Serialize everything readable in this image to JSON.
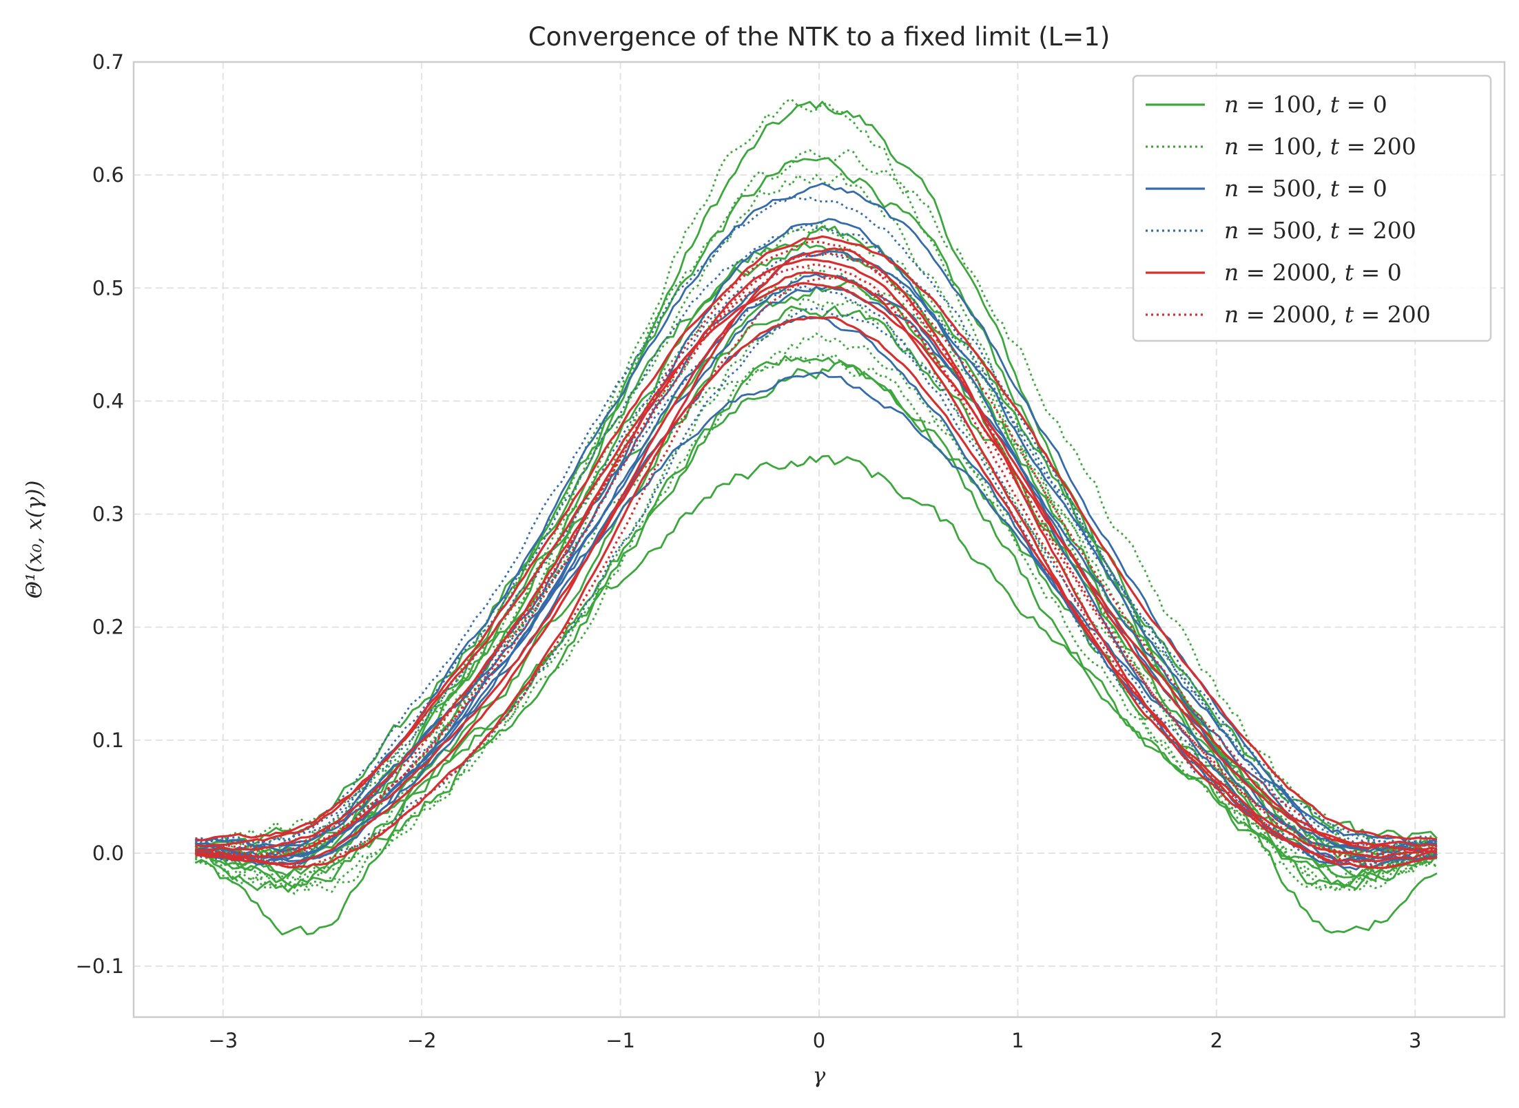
{
  "chart_data": {
    "type": "line",
    "title": "Convergence of the NTK to a fixed limit (L=1)",
    "xlabel": "γ",
    "ylabel": "Θ¹(x₀, x(γ))",
    "xlim": [
      -3.45,
      3.45
    ],
    "ylim": [
      -0.145,
      0.7
    ],
    "x_ticks": [
      -3,
      -2,
      -1,
      0,
      1,
      2,
      3
    ],
    "x_tick_labels": [
      "−3",
      "−2",
      "−1",
      "0",
      "1",
      "2",
      "3"
    ],
    "y_ticks": [
      -0.1,
      0.0,
      0.1,
      0.2,
      0.3,
      0.4,
      0.5,
      0.6,
      0.7
    ],
    "y_tick_labels": [
      "−0.1",
      "0.0",
      "0.1",
      "0.2",
      "0.3",
      "0.4",
      "0.5",
      "0.6",
      "0.7"
    ],
    "grid": true,
    "legend_position": "top-right",
    "x_range": [
      -3.14,
      3.11
    ],
    "series": [
      {
        "name": "n = 100,  t = 0",
        "color": "#3ca73c",
        "style": "solid",
        "peaks": [
          0.66,
          0.61,
          0.55,
          0.54,
          0.5,
          0.48,
          0.44,
          0.43,
          0.35
        ],
        "tail_min": [
          -0.1,
          -0.05,
          -0.03,
          -0.06,
          -0.02,
          -0.04,
          -0.03,
          -0.02,
          -0.05
        ]
      },
      {
        "name": "n = 100,  t = 200",
        "color": "#3ca73c",
        "style": "dotted",
        "peaks": [
          0.665,
          0.62,
          0.6,
          0.55,
          0.51,
          0.49,
          0.455,
          0.44
        ],
        "tail_min": [
          -0.045,
          -0.04,
          -0.05,
          -0.03,
          -0.02,
          -0.035,
          -0.04,
          -0.03
        ]
      },
      {
        "name": "n = 500,  t = 0",
        "color": "#356ba8",
        "style": "solid",
        "peaks": [
          0.59,
          0.56,
          0.53,
          0.51,
          0.5,
          0.47,
          0.42
        ],
        "tail_min": [
          -0.04,
          -0.03,
          -0.02,
          -0.035,
          -0.03,
          -0.025,
          -0.03
        ]
      },
      {
        "name": "n = 500,  t = 200",
        "color": "#356ba8",
        "style": "dotted",
        "peaks": [
          0.58,
          0.555,
          0.53,
          0.5,
          0.48
        ],
        "tail_min": [
          -0.035,
          -0.03,
          -0.025,
          -0.03,
          -0.02
        ]
      },
      {
        "name": "n = 2000,  t = 0",
        "color": "#d62f2f",
        "style": "solid",
        "peaks": [
          0.545,
          0.535,
          0.525,
          0.515,
          0.505,
          0.475
        ],
        "tail_min": [
          -0.025,
          -0.023,
          -0.02,
          -0.022,
          -0.024,
          -0.02
        ]
      },
      {
        "name": "n = 2000,  t = 200",
        "color": "#d62f2f",
        "style": "dotted",
        "peaks": [
          0.54,
          0.53,
          0.52,
          0.51
        ],
        "tail_min": [
          -0.024,
          -0.022,
          -0.021,
          -0.023
        ]
      }
    ]
  },
  "legend": [
    {
      "pre": "n",
      "mid1": " = 100,  ",
      "t": "t",
      "mid2": " = 0"
    },
    {
      "pre": "n",
      "mid1": " = 100,  ",
      "t": "t",
      "mid2": " = 200"
    },
    {
      "pre": "n",
      "mid1": " = 500,  ",
      "t": "t",
      "mid2": " = 0"
    },
    {
      "pre": "n",
      "mid1": " = 500,  ",
      "t": "t",
      "mid2": " = 200"
    },
    {
      "pre": "n",
      "mid1": " = 2000,  ",
      "t": "t",
      "mid2": " = 0"
    },
    {
      "pre": "n",
      "mid1": " = 2000,  ",
      "t": "t",
      "mid2": " = 200"
    }
  ]
}
